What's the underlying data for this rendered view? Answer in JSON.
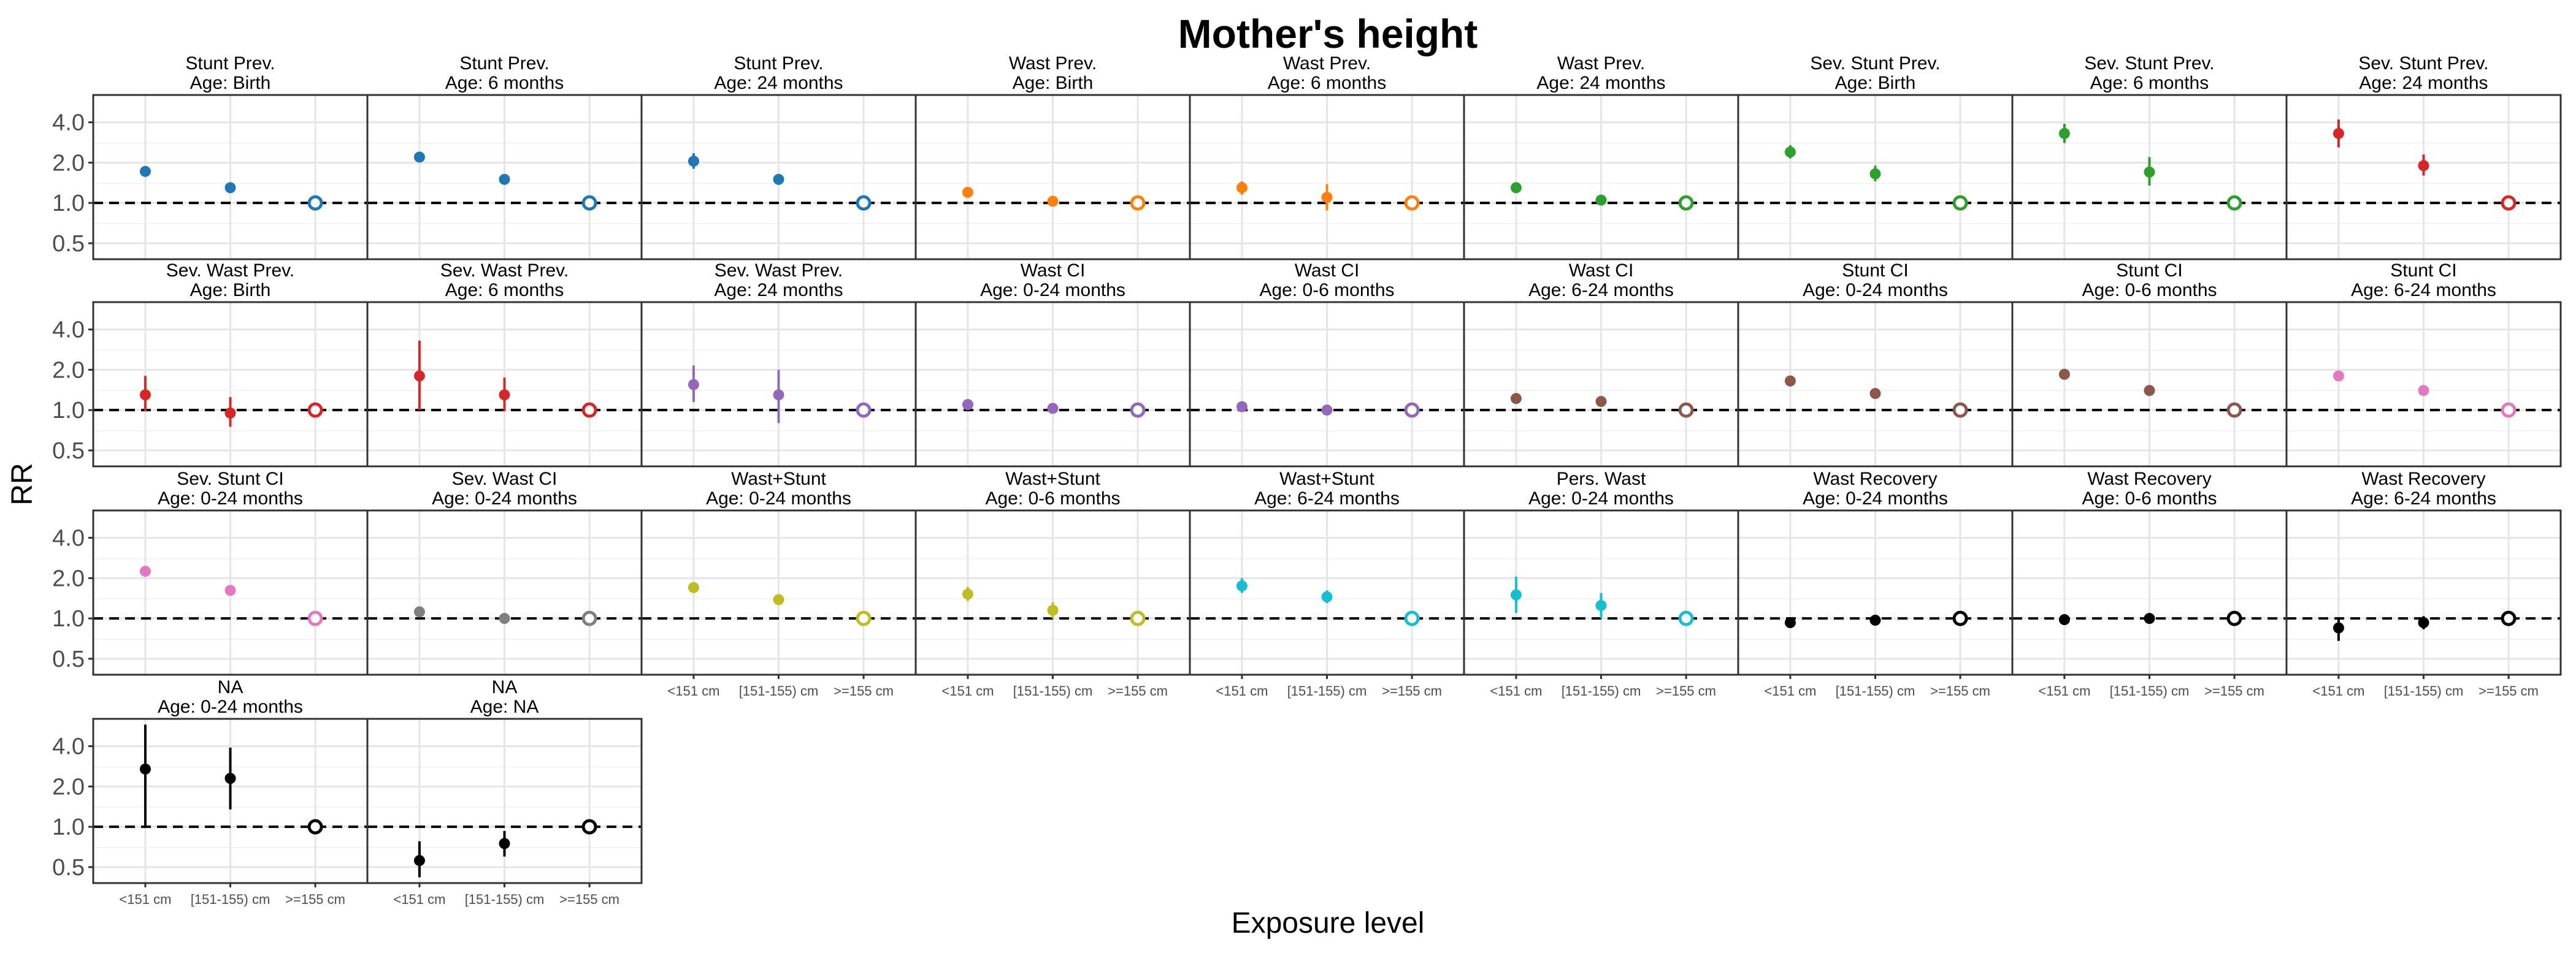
{
  "chart_data": {
    "type": "scatter",
    "title": "Mother's height",
    "xlabel": "Exposure level",
    "ylabel": "RR",
    "y_scale": "log",
    "ylim": [
      0.38,
      6.4
    ],
    "y_ticks": [
      0.5,
      1.0,
      2.0,
      4.0
    ],
    "y_tick_labels": [
      "0.5",
      "1.0",
      "2.0",
      "4.0"
    ],
    "reference_line": 1.0,
    "grid": true,
    "categories": [
      "<151 cm",
      "[151-155) cm",
      ">=155 cm"
    ],
    "reference_marker": "open circle at >=155 cm",
    "panels": [
      {
        "outcome": "Stunt Prev.",
        "age": "Age: Birth",
        "color": "#1f77b4",
        "values": [
          1.72,
          1.3,
          1.0
        ],
        "lower": [
          1.6,
          1.22,
          1.0
        ],
        "upper": [
          1.85,
          1.38,
          1.0
        ]
      },
      {
        "outcome": "Stunt Prev.",
        "age": "Age: 6 months",
        "color": "#1f77b4",
        "values": [
          2.2,
          1.5,
          1.0
        ],
        "lower": [
          2.05,
          1.42,
          1.0
        ],
        "upper": [
          2.35,
          1.58,
          1.0
        ]
      },
      {
        "outcome": "Stunt Prev.",
        "age": "Age: 24 months",
        "color": "#1f77b4",
        "values": [
          2.05,
          1.5,
          1.0
        ],
        "lower": [
          1.8,
          1.4,
          1.0
        ],
        "upper": [
          2.35,
          1.6,
          1.0
        ]
      },
      {
        "outcome": "Wast Prev.",
        "age": "Age: Birth",
        "color": "#ff7f0e",
        "values": [
          1.2,
          1.03,
          1.0
        ],
        "lower": [
          1.1,
          0.98,
          1.0
        ],
        "upper": [
          1.3,
          1.08,
          1.0
        ]
      },
      {
        "outcome": "Wast Prev.",
        "age": "Age: 6 months",
        "color": "#ff7f0e",
        "values": [
          1.3,
          1.1,
          1.0
        ],
        "lower": [
          1.15,
          0.88,
          1.0
        ],
        "upper": [
          1.45,
          1.38,
          1.0
        ]
      },
      {
        "outcome": "Wast Prev.",
        "age": "Age: 24 months",
        "color": "#2ca02c",
        "values": [
          1.3,
          1.05,
          1.0
        ],
        "lower": [
          1.2,
          0.97,
          1.0
        ],
        "upper": [
          1.4,
          1.13,
          1.0
        ]
      },
      {
        "outcome": "Sev. Stunt Prev.",
        "age": "Age: Birth",
        "color": "#2ca02c",
        "values": [
          2.4,
          1.65,
          1.0
        ],
        "lower": [
          2.15,
          1.45,
          1.0
        ],
        "upper": [
          2.7,
          1.9,
          1.0
        ]
      },
      {
        "outcome": "Sev. Stunt Prev.",
        "age": "Age: 6 months",
        "color": "#2ca02c",
        "values": [
          3.3,
          1.7,
          1.0
        ],
        "lower": [
          2.8,
          1.35,
          1.0
        ],
        "upper": [
          3.9,
          2.2,
          1.0
        ]
      },
      {
        "outcome": "Sev. Stunt Prev.",
        "age": "Age: 24 months",
        "color": "#d62728",
        "values": [
          3.3,
          1.9,
          1.0
        ],
        "lower": [
          2.6,
          1.6,
          1.0
        ],
        "upper": [
          4.2,
          2.3,
          1.0
        ]
      },
      {
        "outcome": "Sev. Wast Prev.",
        "age": "Age: Birth",
        "color": "#d62728",
        "values": [
          1.3,
          0.95,
          1.0
        ],
        "lower": [
          0.98,
          0.75,
          1.0
        ],
        "upper": [
          1.8,
          1.25,
          1.0
        ]
      },
      {
        "outcome": "Sev. Wast Prev.",
        "age": "Age: 6 months",
        "color": "#d62728",
        "values": [
          1.8,
          1.3,
          1.0
        ],
        "lower": [
          1.0,
          0.98,
          1.0
        ],
        "upper": [
          3.3,
          1.75,
          1.0
        ]
      },
      {
        "outcome": "Sev. Wast Prev.",
        "age": "Age: 24 months",
        "color": "#9467bd",
        "values": [
          1.55,
          1.3,
          1.0
        ],
        "lower": [
          1.15,
          0.8,
          1.0
        ],
        "upper": [
          2.15,
          2.0,
          1.0
        ]
      },
      {
        "outcome": "Wast CI",
        "age": "Age: 0-24 months",
        "color": "#9467bd",
        "values": [
          1.1,
          1.03,
          1.0
        ],
        "lower": [
          1.05,
          0.99,
          1.0
        ],
        "upper": [
          1.15,
          1.07,
          1.0
        ]
      },
      {
        "outcome": "Wast CI",
        "age": "Age: 0-6 months",
        "color": "#9467bd",
        "values": [
          1.06,
          1.0,
          1.0
        ],
        "lower": [
          1.0,
          0.96,
          1.0
        ],
        "upper": [
          1.12,
          1.04,
          1.0
        ]
      },
      {
        "outcome": "Wast CI",
        "age": "Age: 6-24 months",
        "color": "#8c564b",
        "values": [
          1.22,
          1.16,
          1.0
        ],
        "lower": [
          1.16,
          1.1,
          1.0
        ],
        "upper": [
          1.28,
          1.22,
          1.0
        ]
      },
      {
        "outcome": "Stunt CI",
        "age": "Age: 0-24 months",
        "color": "#8c564b",
        "values": [
          1.65,
          1.33,
          1.0
        ],
        "lower": [
          1.58,
          1.27,
          1.0
        ],
        "upper": [
          1.72,
          1.39,
          1.0
        ]
      },
      {
        "outcome": "Stunt CI",
        "age": "Age: 0-6 months",
        "color": "#8c564b",
        "values": [
          1.85,
          1.4,
          1.0
        ],
        "lower": [
          1.77,
          1.33,
          1.0
        ],
        "upper": [
          1.93,
          1.47,
          1.0
        ]
      },
      {
        "outcome": "Stunt CI",
        "age": "Age: 6-24 months",
        "color": "#e377c2",
        "values": [
          1.8,
          1.4,
          1.0
        ],
        "lower": [
          1.7,
          1.32,
          1.0
        ],
        "upper": [
          1.9,
          1.48,
          1.0
        ]
      },
      {
        "outcome": "Sev. Stunt CI",
        "age": "Age: 0-24 months",
        "color": "#e377c2",
        "values": [
          2.25,
          1.62,
          1.0
        ],
        "lower": [
          2.12,
          1.54,
          1.0
        ],
        "upper": [
          2.38,
          1.7,
          1.0
        ]
      },
      {
        "outcome": "Sev. Wast CI",
        "age": "Age: 0-24 months",
        "color": "#7f7f7f",
        "values": [
          1.12,
          1.0,
          1.0
        ],
        "lower": [
          1.02,
          0.96,
          1.0
        ],
        "upper": [
          1.22,
          1.04,
          1.0
        ]
      },
      {
        "outcome": "Wast+Stunt",
        "age": "Age: 0-24 months",
        "color": "#bcbd22",
        "values": [
          1.7,
          1.38,
          1.0
        ],
        "lower": [
          1.6,
          1.3,
          1.0
        ],
        "upper": [
          1.8,
          1.46,
          1.0
        ]
      },
      {
        "outcome": "Wast+Stunt",
        "age": "Age: 0-6 months",
        "color": "#bcbd22",
        "values": [
          1.52,
          1.15,
          1.0
        ],
        "lower": [
          1.35,
          1.0,
          1.0
        ],
        "upper": [
          1.72,
          1.32,
          1.0
        ]
      },
      {
        "outcome": "Wast+Stunt",
        "age": "Age: 6-24 months",
        "color": "#17becf",
        "values": [
          1.75,
          1.45,
          1.0
        ],
        "lower": [
          1.55,
          1.3,
          1.0
        ],
        "upper": [
          2.0,
          1.62,
          1.0
        ]
      },
      {
        "outcome": "Pers. Wast",
        "age": "Age: 0-24 months",
        "color": "#17becf",
        "values": [
          1.5,
          1.25,
          1.0
        ],
        "lower": [
          1.1,
          1.0,
          1.0
        ],
        "upper": [
          2.05,
          1.55,
          1.0
        ]
      },
      {
        "outcome": "Wast Recovery",
        "age": "Age: 0-24 months",
        "color": "#000000",
        "values": [
          0.93,
          0.97,
          1.0
        ],
        "lower": [
          0.89,
          0.94,
          1.0
        ],
        "upper": [
          0.97,
          1.0,
          1.0
        ]
      },
      {
        "outcome": "Wast Recovery",
        "age": "Age: 0-6 months",
        "color": "#000000",
        "values": [
          0.98,
          1.0,
          1.0
        ],
        "lower": [
          0.94,
          0.97,
          1.0
        ],
        "upper": [
          1.02,
          1.03,
          1.0
        ]
      },
      {
        "outcome": "Wast Recovery",
        "age": "Age: 6-24 months",
        "color": "#000000",
        "values": [
          0.85,
          0.93,
          1.0
        ],
        "lower": [
          0.68,
          0.83,
          1.0
        ],
        "upper": [
          1.02,
          1.04,
          1.0
        ]
      },
      {
        "outcome": "NA",
        "age": "Age: 0-24 months",
        "color": "#000000",
        "values": [
          2.7,
          2.3,
          1.0
        ],
        "lower": [
          1.0,
          1.35,
          1.0
        ],
        "upper": [
          5.8,
          3.9,
          1.0
        ]
      },
      {
        "outcome": "NA",
        "age": "Age: NA",
        "color": "#000000",
        "values": [
          0.56,
          0.75,
          1.0
        ],
        "lower": [
          0.42,
          0.6,
          1.0
        ],
        "upper": [
          0.78,
          0.93,
          1.0
        ]
      }
    ]
  }
}
